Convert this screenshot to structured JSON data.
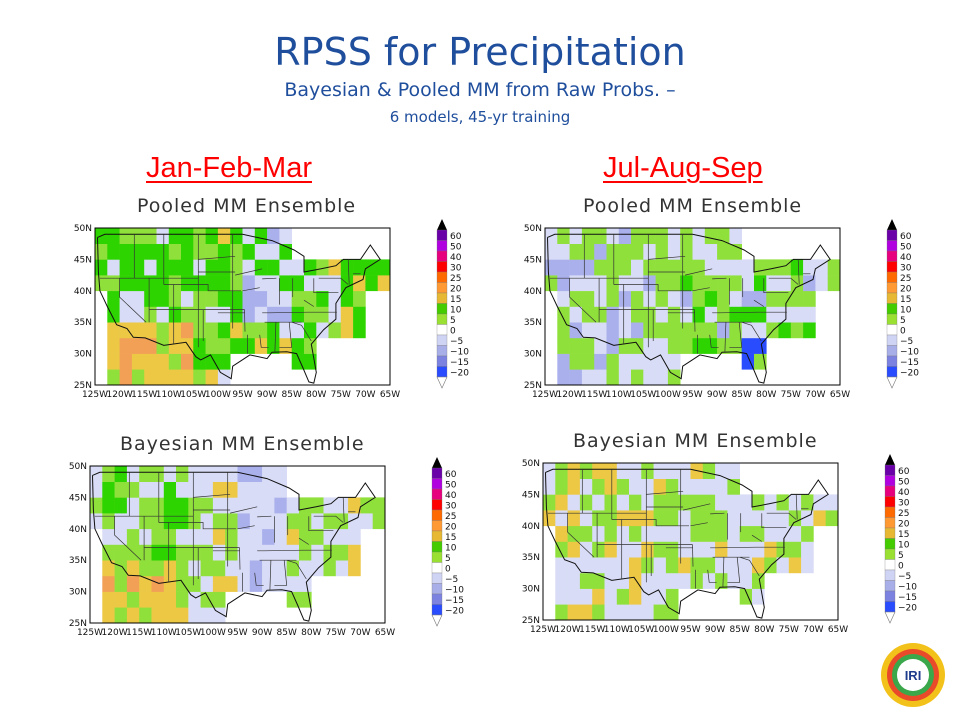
{
  "header": {
    "title": "RPSS for Precipitation",
    "subtitle": "Bayesian & Pooled MM from Raw Probs. –",
    "detail": "6 models, 45-yr training"
  },
  "seasons": [
    "Jan-Feb-Mar",
    "Jul-Aug-Sep"
  ],
  "panels": [
    {
      "title": "Pooled MM Ensemble",
      "season": "Jan-Feb-Mar",
      "variant": "pooled_jfm"
    },
    {
      "title": "Pooled MM Ensemble",
      "season": "Jul-Aug-Sep",
      "variant": "pooled_jas"
    },
    {
      "title": "Bayesian MM Ensemble",
      "season": "Jan-Feb-Mar",
      "variant": "bayes_jfm"
    },
    {
      "title": "Bayesian MM Ensemble",
      "season": "Jul-Aug-Sep",
      "variant": "bayes_jas"
    }
  ],
  "axes": {
    "lat_labels": [
      "50N",
      "45N",
      "40N",
      "35N",
      "30N",
      "25N"
    ],
    "lon_labels": [
      "125W",
      "120W",
      "115W",
      "110W",
      "105W",
      "100W",
      "95W",
      "90W",
      "85W",
      "80W",
      "75W",
      "70W",
      "65W"
    ]
  },
  "colorbar": {
    "labels": [
      "60",
      "50",
      "40",
      "30",
      "25",
      "20",
      "15",
      "10",
      "5",
      "0",
      "−5",
      "−10",
      "−15",
      "−20"
    ],
    "colors": [
      "#6a00a8",
      "#b000e0",
      "#e6007e",
      "#ff0000",
      "#ff6a00",
      "#ff9933",
      "#e6b833",
      "#44cc00",
      "#99e033",
      "#ffffff",
      "#d0d4f4",
      "#a8aee8",
      "#7c82e0",
      "#2a4cff"
    ]
  },
  "cell_colors": {
    "white": "#ffffff",
    "light_blue": "#d8dcf6",
    "blue": "#aab0ec",
    "mid_blue": "#7c82e0",
    "dark_blue": "#2a4cff",
    "light_green": "#8fe03a",
    "green": "#2ed400",
    "yellow": "#ecc845",
    "orange": "#f2a055",
    "red_orange": "#e8703c"
  },
  "logo": {
    "text": "IRI"
  }
}
